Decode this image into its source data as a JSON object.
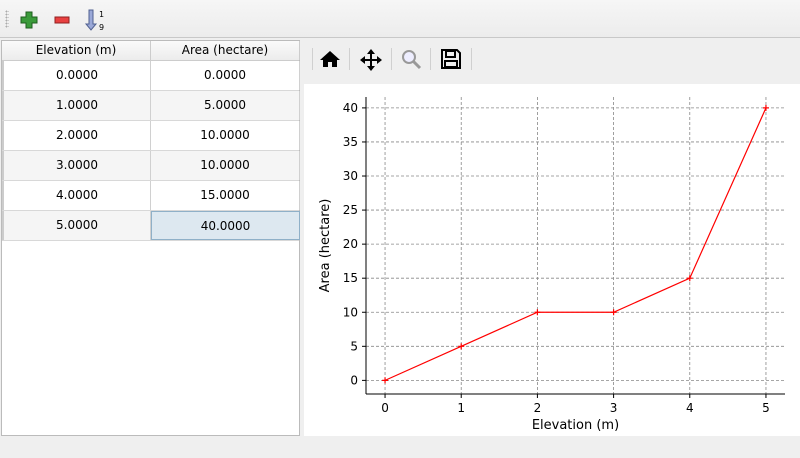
{
  "toolbar": {
    "buttons": [
      {
        "icon": "plus-icon",
        "color": "#3a9a3a"
      },
      {
        "icon": "minus-icon",
        "color": "#e03030"
      },
      {
        "icon": "sort-ascending-icon",
        "label_top": "1",
        "label_bottom": "9"
      }
    ]
  },
  "table": {
    "columns": [
      "Elevation (m)",
      "Area (hectare)"
    ],
    "rows": [
      [
        "0.0000",
        "0.0000"
      ],
      [
        "1.0000",
        "5.0000"
      ],
      [
        "2.0000",
        "10.0000"
      ],
      [
        "3.0000",
        "10.0000"
      ],
      [
        "4.0000",
        "15.0000"
      ],
      [
        "5.0000",
        "40.0000"
      ]
    ],
    "selected": {
      "row": 5,
      "col": 1
    }
  },
  "plot_toolbar": [
    "home-icon",
    "pan-icon",
    "zoom-icon",
    "save-icon"
  ],
  "chart_data": {
    "type": "line",
    "x": [
      0,
      1,
      2,
      3,
      4,
      5
    ],
    "series": [
      {
        "values": [
          0,
          5,
          10,
          10,
          15,
          40
        ],
        "color": "#ff0000",
        "marker": "+"
      }
    ],
    "xlabel": "Elevation (m)",
    "ylabel": "Area (hectare)",
    "xlim": [
      -0.25,
      5.25
    ],
    "ylim": [
      -2,
      41.6
    ],
    "xticks": [
      0,
      1,
      2,
      3,
      4,
      5
    ],
    "yticks": [
      0,
      5,
      10,
      15,
      20,
      25,
      30,
      35,
      40
    ],
    "grid": true
  }
}
